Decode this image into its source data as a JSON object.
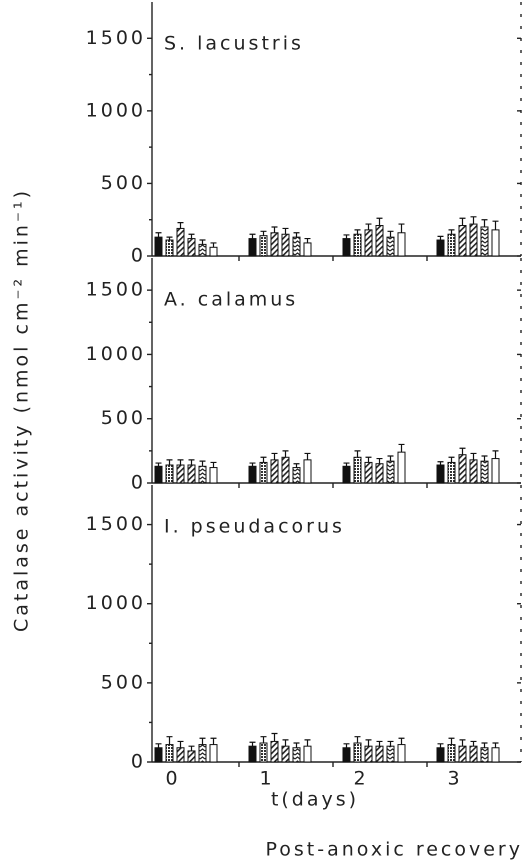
{
  "ylabel": "Catalase activity (nmol cm⁻² min⁻¹)",
  "xlabel": "t(days)",
  "footer": "Post-anoxic recovery",
  "chart_data": [
    {
      "type": "bar",
      "title": "S. lacustris",
      "categories": [
        "0",
        "1",
        "2",
        "3"
      ],
      "ylim": [
        0,
        1750
      ],
      "yticks": [
        0,
        500,
        1000,
        1500
      ],
      "minor_yticks": [
        250,
        750,
        1250
      ],
      "series": [
        {
          "color": "#111111",
          "pattern": "solid",
          "values": [
            130,
            120,
            120,
            110
          ],
          "errors": [
            30,
            30,
            25,
            25
          ]
        },
        {
          "color": "#111111",
          "pattern": "dots",
          "values": [
            110,
            140,
            150,
            150
          ],
          "errors": [
            20,
            30,
            30,
            30
          ]
        },
        {
          "color": "#111111",
          "pattern": "hatch",
          "values": [
            190,
            160,
            180,
            210
          ],
          "errors": [
            40,
            40,
            40,
            50
          ]
        },
        {
          "color": "#111111",
          "pattern": "hatch",
          "values": [
            120,
            150,
            210,
            220
          ],
          "errors": [
            30,
            40,
            50,
            50
          ]
        },
        {
          "color": "#111111",
          "pattern": "zigzag",
          "values": [
            80,
            130,
            130,
            200
          ],
          "errors": [
            30,
            30,
            40,
            50
          ]
        },
        {
          "color": "#111111",
          "pattern": "open",
          "values": [
            60,
            90,
            160,
            180
          ],
          "errors": [
            30,
            30,
            60,
            60
          ]
        }
      ]
    },
    {
      "type": "bar",
      "title": "A. calamus",
      "categories": [
        "0",
        "1",
        "2",
        "3"
      ],
      "ylim": [
        0,
        1750
      ],
      "yticks": [
        0,
        500,
        1000,
        1500
      ],
      "minor_yticks": [
        250,
        750,
        1250
      ],
      "series": [
        {
          "color": "#111111",
          "pattern": "solid",
          "values": [
            130,
            130,
            130,
            140
          ],
          "errors": [
            25,
            25,
            25,
            25
          ]
        },
        {
          "color": "#111111",
          "pattern": "dots",
          "values": [
            140,
            160,
            200,
            160
          ],
          "errors": [
            40,
            40,
            50,
            40
          ]
        },
        {
          "color": "#111111",
          "pattern": "hatch",
          "values": [
            140,
            180,
            160,
            220
          ],
          "errors": [
            40,
            50,
            40,
            50
          ]
        },
        {
          "color": "#111111",
          "pattern": "hatch",
          "values": [
            140,
            200,
            150,
            180
          ],
          "errors": [
            40,
            50,
            40,
            50
          ]
        },
        {
          "color": "#111111",
          "pattern": "zigzag",
          "values": [
            130,
            120,
            170,
            170
          ],
          "errors": [
            40,
            30,
            40,
            40
          ]
        },
        {
          "color": "#111111",
          "pattern": "open",
          "values": [
            120,
            180,
            240,
            190
          ],
          "errors": [
            40,
            50,
            60,
            60
          ]
        }
      ]
    },
    {
      "type": "bar",
      "title": "I. pseudacorus",
      "categories": [
        "0",
        "1",
        "2",
        "3"
      ],
      "ylim": [
        0,
        1750
      ],
      "yticks": [
        0,
        500,
        1000,
        1500
      ],
      "minor_yticks": [
        250,
        750,
        1250
      ],
      "series": [
        {
          "color": "#111111",
          "pattern": "solid",
          "values": [
            90,
            100,
            90,
            90
          ],
          "errors": [
            25,
            25,
            25,
            25
          ]
        },
        {
          "color": "#111111",
          "pattern": "dots",
          "values": [
            110,
            120,
            120,
            110
          ],
          "errors": [
            50,
            40,
            40,
            40
          ]
        },
        {
          "color": "#111111",
          "pattern": "hatch",
          "values": [
            90,
            130,
            100,
            100
          ],
          "errors": [
            40,
            50,
            40,
            40
          ]
        },
        {
          "color": "#111111",
          "pattern": "hatch",
          "values": [
            70,
            100,
            100,
            100
          ],
          "errors": [
            30,
            40,
            30,
            30
          ]
        },
        {
          "color": "#111111",
          "pattern": "zigzag",
          "values": [
            110,
            90,
            100,
            90
          ],
          "errors": [
            40,
            30,
            30,
            30
          ]
        },
        {
          "color": "#111111",
          "pattern": "open",
          "values": [
            110,
            100,
            110,
            90
          ],
          "errors": [
            40,
            40,
            40,
            30
          ]
        }
      ]
    }
  ]
}
